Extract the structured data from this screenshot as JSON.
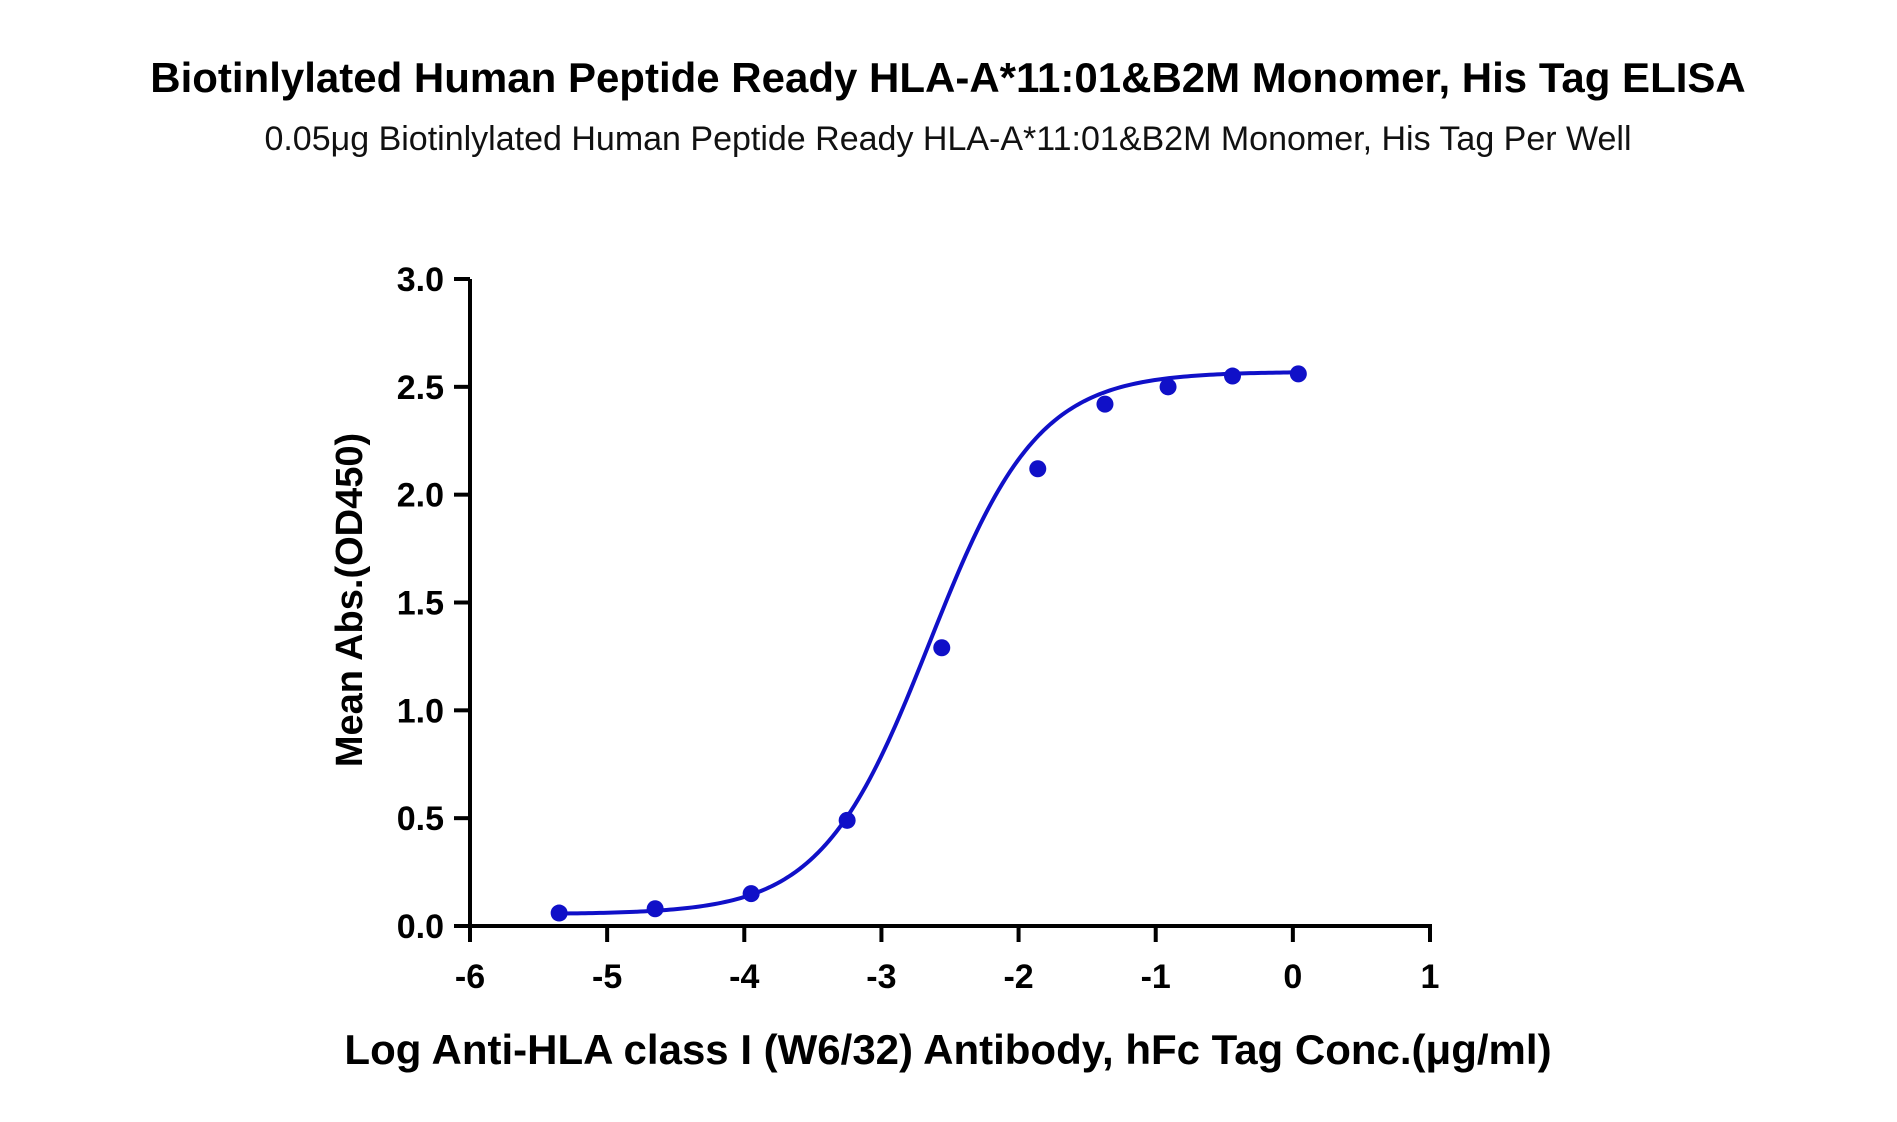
{
  "chart_data": {
    "type": "line",
    "title": "Biotinlylated Human Peptide Ready HLA-A*11:01&B2M Monomer, His Tag ELISA",
    "subtitle": "0.05μg Biotinlylated Human Peptide Ready HLA-A*11:01&B2M Monomer, His Tag Per Well",
    "xlabel": "Log Anti-HLA class I (W6/32) Antibody, hFc Tag Conc.(μg/ml)",
    "ylabel": "Mean Abs.(OD450)",
    "xlim": [
      -6,
      1
    ],
    "ylim": [
      0,
      3.0
    ],
    "x_ticks": [
      "-6",
      "-5",
      "-4",
      "-3",
      "-2",
      "-1",
      "0",
      "1"
    ],
    "x_tick_values": [
      -6,
      -5,
      -4,
      -3,
      -2,
      -1,
      0,
      1
    ],
    "y_ticks": [
      "0.0",
      "0.5",
      "1.0",
      "1.5",
      "2.0",
      "2.5",
      "3.0"
    ],
    "y_tick_values": [
      0,
      0.5,
      1.0,
      1.5,
      2.0,
      2.5,
      3.0
    ],
    "grid": false,
    "legend": "none",
    "series_color": "#1010c8",
    "series": [
      {
        "x": [
          -5.35,
          -4.65,
          -3.95,
          -3.25,
          -2.56,
          -1.86,
          -1.37,
          -0.91,
          -0.44,
          0.04
        ],
        "y": [
          0.06,
          0.08,
          0.15,
          0.49,
          1.29,
          2.12,
          2.42,
          2.5,
          2.55,
          2.56
        ],
        "fit": "4PL"
      }
    ]
  }
}
